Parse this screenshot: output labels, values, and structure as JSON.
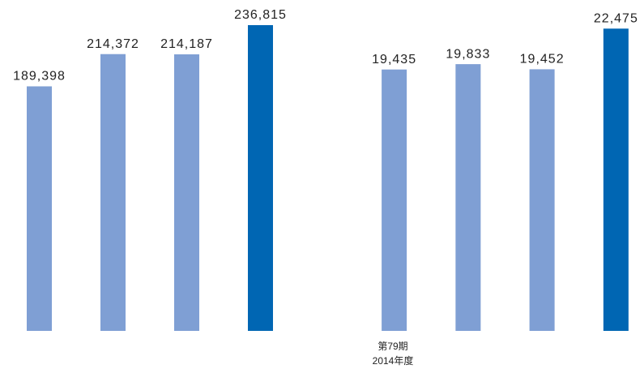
{
  "chart_data": [
    {
      "type": "bar",
      "categories": [
        null,
        null,
        null,
        null
      ],
      "values": [
        189398,
        214372,
        214187,
        236815
      ],
      "value_labels": [
        "189,398",
        "214,372",
        "214,187",
        "236,815"
      ],
      "colors": [
        "#7f9fd4",
        "#7f9fd4",
        "#7f9fd4",
        "#0066b3"
      ],
      "ylim": [
        0,
        250000
      ]
    },
    {
      "type": "bar",
      "categories": [
        null,
        null,
        null,
        null
      ],
      "values": [
        19435,
        19833,
        19452,
        22475
      ],
      "value_labels": [
        "19,435",
        "19,833",
        "19,452",
        "22,475"
      ],
      "colors": [
        "#7f9fd4",
        "#7f9fd4",
        "#7f9fd4",
        "#0066b3"
      ],
      "ylim": [
        0,
        24000
      ],
      "annotations": [
        "第79期",
        "2014年度"
      ]
    }
  ]
}
